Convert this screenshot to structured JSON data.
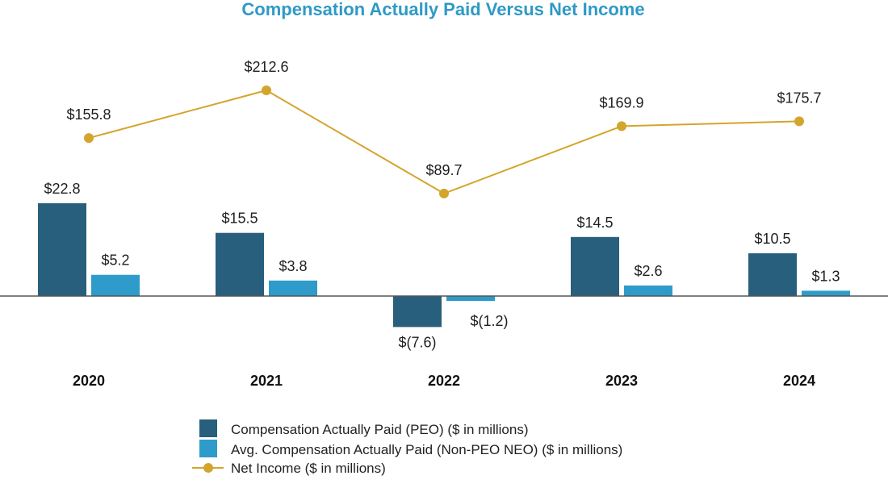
{
  "colors": {
    "title": "#2e9ac6",
    "peo": "#275f7c",
    "non_peo": "#2e9bcb",
    "net_income": "#d4a52c",
    "axis": "#555555"
  },
  "chart_data": {
    "type": "bar",
    "title": "Compensation Actually Paid Versus Net Income",
    "categories": [
      "2020",
      "2021",
      "2022",
      "2023",
      "2024"
    ],
    "series": [
      {
        "name": "Compensation Actually Paid (PEO) ($ in millions)",
        "kind": "bar",
        "values": [
          22.8,
          15.5,
          -7.6,
          14.5,
          10.5
        ],
        "labels": [
          "$22.8",
          "$15.5",
          "$(7.6)",
          "$14.5",
          "$10.5"
        ]
      },
      {
        "name": "Avg. Compensation Actually Paid (Non-PEO NEO) ($ in millions)",
        "kind": "bar",
        "values": [
          5.2,
          3.8,
          -1.2,
          2.6,
          1.3
        ],
        "labels": [
          "$5.2",
          "$3.8",
          "$(1.2)",
          "$2.6",
          "$1.3"
        ]
      },
      {
        "name": "Net Income ($ in millions)",
        "kind": "line",
        "values": [
          155.8,
          212.6,
          89.7,
          169.9,
          175.7
        ],
        "labels": [
          "$155.8",
          "$212.6",
          "$89.7",
          "$169.9",
          "$175.7"
        ]
      }
    ],
    "legend_position": "bottom-center",
    "grid": false
  }
}
